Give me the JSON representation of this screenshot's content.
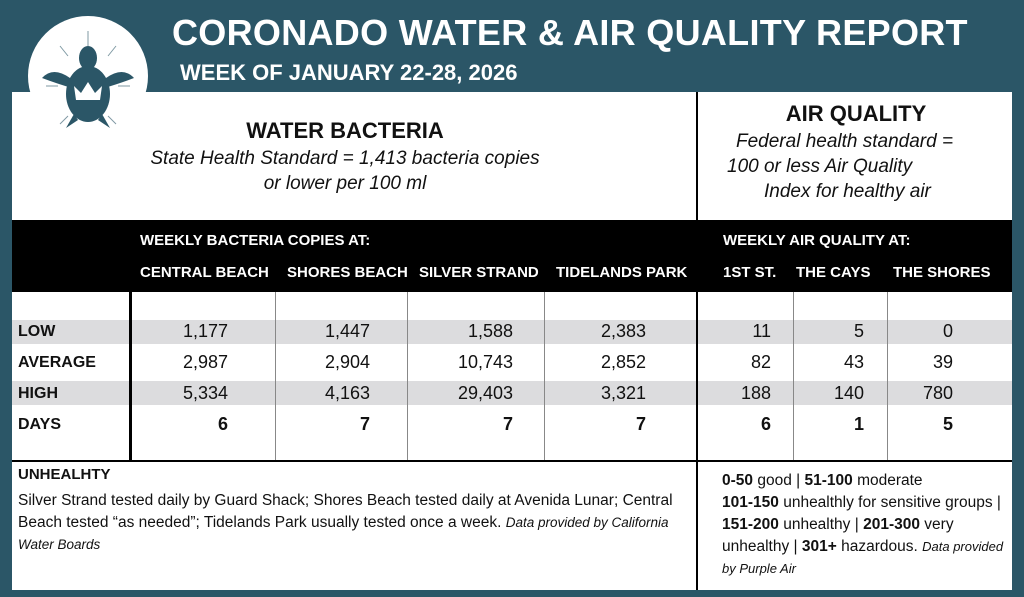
{
  "header": {
    "title": "CORONADO WATER & AIR QUALITY REPORT",
    "subtitle": "WEEK OF JANUARY 22-28, 2026"
  },
  "water": {
    "heading": "WATER BACTERIA",
    "standard_line1": "State Health Standard  = 1,413 bacteria copies",
    "standard_line2": "or lower per 100 ml",
    "band_label": "WEEKLY BACTERIA COPIES AT:",
    "columns": [
      "CENTRAL BEACH",
      "SHORES BEACH",
      "SILVER STRAND",
      "TIDELANDS PARK"
    ],
    "rows": [
      [
        "1,177",
        "1,447",
        "1,588",
        "2,383"
      ],
      [
        "2,987",
        "2,904",
        "10,743",
        "2,852"
      ],
      [
        "5,334",
        "4,163",
        "29,403",
        "3,321"
      ],
      [
        "6",
        "7",
        "7",
        "7"
      ]
    ]
  },
  "air": {
    "heading": "AIR QUALITY",
    "standard_line1": "Federal health standard =",
    "standard_line2": "100 or less Air Quality",
    "standard_line3": "Index for healthy air",
    "band_label": "WEEKLY AIR QUALITY AT:",
    "columns": [
      "1ST ST.",
      "THE CAYS",
      "THE SHORES"
    ],
    "rows": [
      [
        "11",
        "5",
        "0"
      ],
      [
        "82",
        "43",
        "39"
      ],
      [
        "188",
        "140",
        "780"
      ],
      [
        "6",
        "1",
        "5"
      ]
    ]
  },
  "row_labels": [
    "LOW",
    "AVERAGE",
    "HIGH",
    "DAYS"
  ],
  "footer_left": {
    "heading": "UNHEALHTY",
    "text": "Silver Strand tested daily by Guard Shack; Shores Beach tested daily at Avenida Lunar; Central Beach tested “as needed”; Tidelands Park usually tested once a week.",
    "credit": "Data provided by California Water Boards"
  },
  "footer_right": {
    "r1": "0-50",
    "t1": "good |",
    "r2": "51-100",
    "t2": "moderate",
    "r3": "101-150",
    "t3": "unhealthly for sensitive groups |",
    "r4": "151-200",
    "t4": "unhealthy |",
    "r5": "201-300",
    "t5": "very unhealthy |",
    "r6": "301+",
    "t6": "hazardous.",
    "credit": "Data provided by Purple Air"
  }
}
